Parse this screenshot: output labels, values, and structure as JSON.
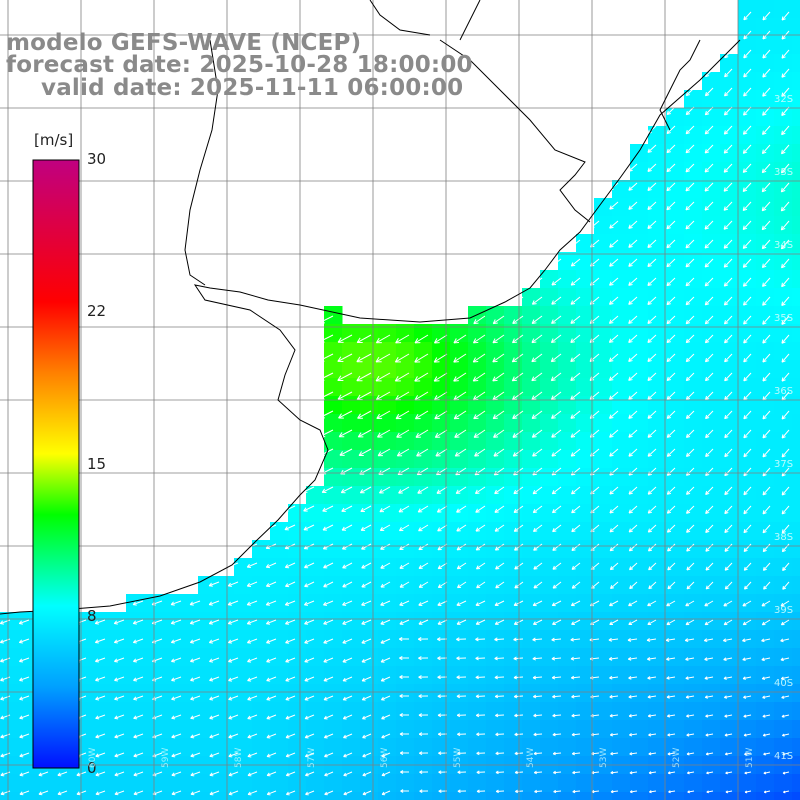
{
  "title": {
    "line1": "modelo GEFS-WAVE (NCEP)",
    "line2": "forecast date: 2025-10-28 18:00:00",
    "line3": "valid date: 2025-11-11 06:00:00"
  },
  "colorbar": {
    "unit": "[m/s]",
    "ticks": [
      "30",
      "22",
      "15",
      "8",
      "0"
    ],
    "min": 0,
    "max": 30,
    "colors": [
      "#0010ff",
      "#00a0ff",
      "#00ffff",
      "#00ff00",
      "#ffff00",
      "#ff8000",
      "#ff0000",
      "#c00080"
    ]
  },
  "lat_labels": [
    "32S",
    "33S",
    "34S",
    "35S",
    "36S",
    "37S",
    "38S",
    "39S",
    "40S",
    "41S"
  ],
  "lon_labels": [
    "60W",
    "59W",
    "58W",
    "57W",
    "56W",
    "55W",
    "54W",
    "53W",
    "52W",
    "51W"
  ],
  "colors": {
    "land": "#ffffff",
    "grid": "#7f7f7f",
    "coast": "#000000",
    "arrow": "#ffffff",
    "title": "#8a8a8a"
  }
}
